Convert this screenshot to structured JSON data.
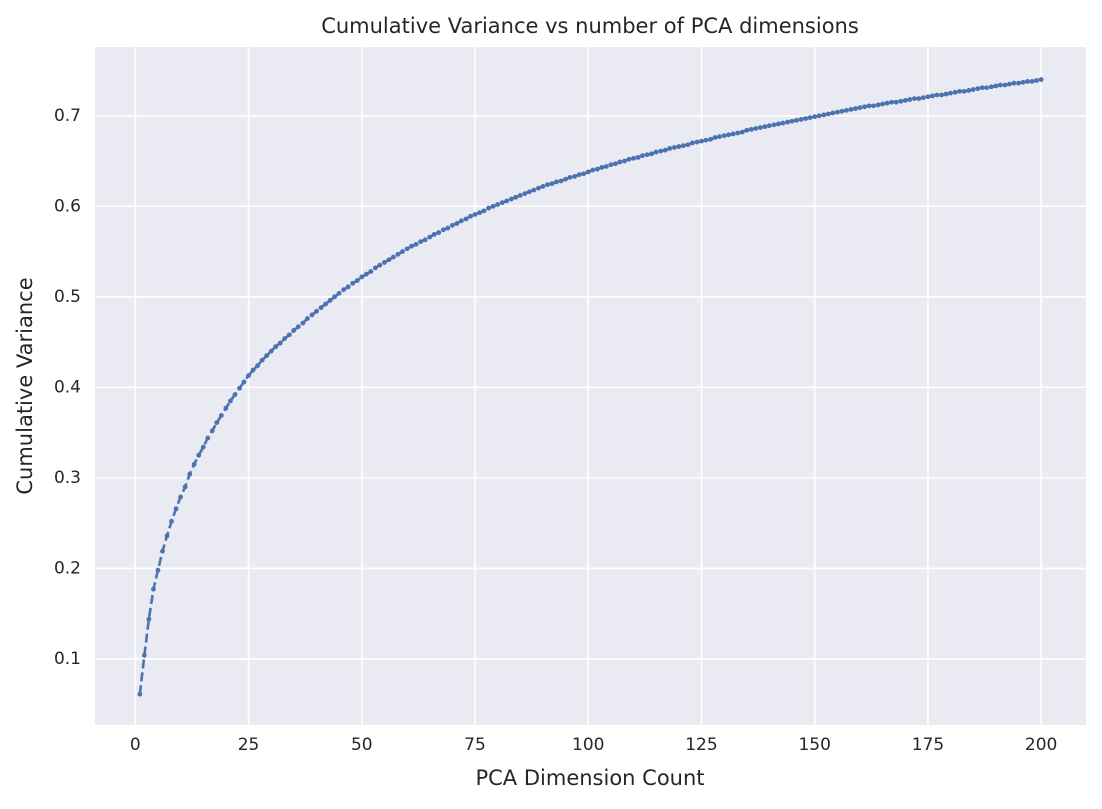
{
  "chart_data": {
    "type": "line",
    "title": "Cumulative Variance vs number of PCA dimensions",
    "xlabel": "PCA Dimension Count",
    "ylabel": "Cumulative Variance",
    "color": "#4c72b0",
    "grid": true,
    "xlim": [
      -8.9,
      209.9
    ],
    "ylim": [
      0.027,
      0.776
    ],
    "xticks": [
      0,
      25,
      50,
      75,
      100,
      125,
      150,
      175,
      200
    ],
    "yticks": [
      0.1,
      0.2,
      0.3,
      0.4,
      0.5,
      0.6,
      0.7
    ],
    "x": [
      1,
      2,
      3,
      4,
      5,
      6,
      7,
      8,
      9,
      10,
      11,
      12,
      13,
      14,
      15,
      16,
      17,
      18,
      19,
      20,
      21,
      22,
      23,
      24,
      25,
      26,
      27,
      28,
      29,
      30,
      31,
      32,
      33,
      34,
      35,
      36,
      37,
      38,
      39,
      40,
      41,
      42,
      43,
      44,
      45,
      46,
      47,
      48,
      49,
      50,
      51,
      52,
      53,
      54,
      55,
      56,
      57,
      58,
      59,
      60,
      61,
      62,
      63,
      64,
      65,
      66,
      67,
      68,
      69,
      70,
      71,
      72,
      73,
      74,
      75,
      76,
      77,
      78,
      79,
      80,
      81,
      82,
      83,
      84,
      85,
      86,
      87,
      88,
      89,
      90,
      91,
      92,
      93,
      94,
      95,
      96,
      97,
      98,
      99,
      100,
      101,
      102,
      103,
      104,
      105,
      106,
      107,
      108,
      109,
      110,
      111,
      112,
      113,
      114,
      115,
      116,
      117,
      118,
      119,
      120,
      121,
      122,
      123,
      124,
      125,
      126,
      127,
      128,
      129,
      130,
      131,
      132,
      133,
      134,
      135,
      136,
      137,
      138,
      139,
      140,
      141,
      142,
      143,
      144,
      145,
      146,
      147,
      148,
      149,
      150,
      151,
      152,
      153,
      154,
      155,
      156,
      157,
      158,
      159,
      160,
      161,
      162,
      163,
      164,
      165,
      166,
      167,
      168,
      169,
      170,
      171,
      172,
      173,
      174,
      175,
      176,
      177,
      178,
      179,
      180,
      181,
      182,
      183,
      184,
      185,
      186,
      187,
      188,
      189,
      190,
      191,
      192,
      193,
      194,
      195,
      196,
      197,
      198,
      199,
      200
    ],
    "values": [
      0.061,
      0.104,
      0.144,
      0.177,
      0.198,
      0.219,
      0.236,
      0.252,
      0.266,
      0.279,
      0.29,
      0.304,
      0.315,
      0.325,
      0.334,
      0.344,
      0.352,
      0.361,
      0.369,
      0.377,
      0.385,
      0.392,
      0.399,
      0.406,
      0.413,
      0.419,
      0.424,
      0.43,
      0.435,
      0.44,
      0.445,
      0.449,
      0.454,
      0.458,
      0.463,
      0.467,
      0.471,
      0.476,
      0.48,
      0.484,
      0.488,
      0.492,
      0.496,
      0.5,
      0.504,
      0.508,
      0.511,
      0.515,
      0.518,
      0.522,
      0.525,
      0.528,
      0.532,
      0.535,
      0.538,
      0.541,
      0.544,
      0.547,
      0.55,
      0.553,
      0.556,
      0.558,
      0.561,
      0.563,
      0.566,
      0.569,
      0.571,
      0.574,
      0.576,
      0.579,
      0.581,
      0.584,
      0.586,
      0.589,
      0.591,
      0.593,
      0.595,
      0.598,
      0.6,
      0.602,
      0.604,
      0.606,
      0.608,
      0.61,
      0.612,
      0.614,
      0.616,
      0.618,
      0.62,
      0.622,
      0.624,
      0.625,
      0.627,
      0.628,
      0.63,
      0.632,
      0.633,
      0.635,
      0.636,
      0.638,
      0.64,
      0.641,
      0.643,
      0.644,
      0.646,
      0.647,
      0.649,
      0.65,
      0.652,
      0.653,
      0.654,
      0.656,
      0.657,
      0.658,
      0.66,
      0.661,
      0.662,
      0.664,
      0.665,
      0.666,
      0.667,
      0.668,
      0.67,
      0.671,
      0.672,
      0.673,
      0.674,
      0.676,
      0.677,
      0.678,
      0.679,
      0.68,
      0.681,
      0.682,
      0.684,
      0.685,
      0.686,
      0.687,
      0.688,
      0.689,
      0.69,
      0.691,
      0.692,
      0.693,
      0.694,
      0.695,
      0.696,
      0.697,
      0.698,
      0.699,
      0.7,
      0.701,
      0.702,
      0.703,
      0.704,
      0.705,
      0.706,
      0.707,
      0.708,
      0.709,
      0.71,
      0.711,
      0.711,
      0.712,
      0.713,
      0.714,
      0.715,
      0.715,
      0.716,
      0.717,
      0.718,
      0.719,
      0.719,
      0.72,
      0.721,
      0.722,
      0.723,
      0.723,
      0.724,
      0.725,
      0.726,
      0.727,
      0.727,
      0.728,
      0.729,
      0.73,
      0.731,
      0.731,
      0.732,
      0.733,
      0.734,
      0.734,
      0.735,
      0.736,
      0.736,
      0.737,
      0.738,
      0.738,
      0.739,
      0.74
    ]
  }
}
